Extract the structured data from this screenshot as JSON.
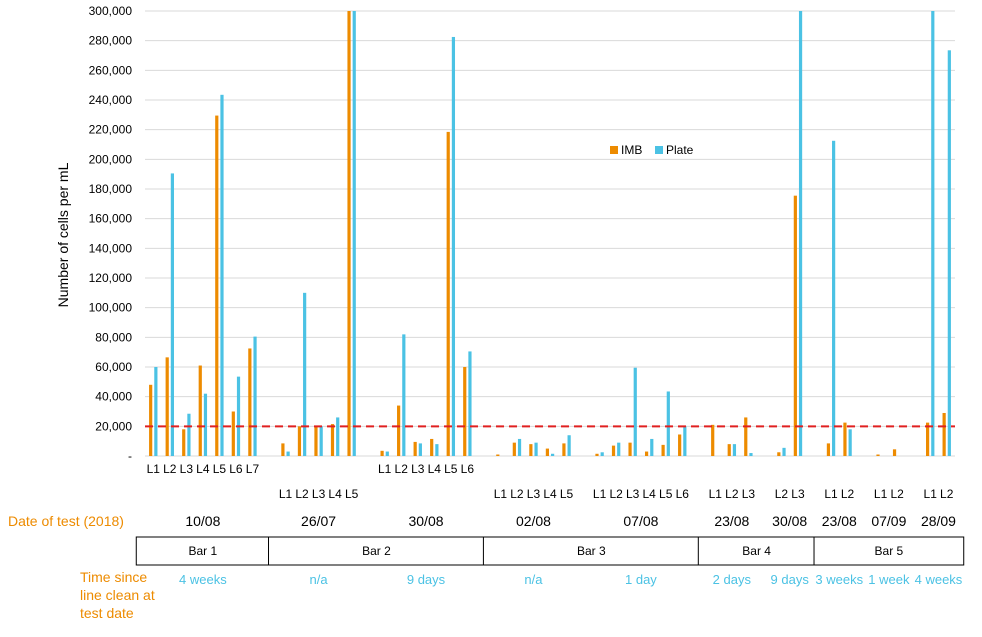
{
  "chart_data": {
    "type": "bar",
    "title": "",
    "ylabel": "Number of cells per mL",
    "ylim": [
      0,
      300000
    ],
    "y_ticks": [
      0,
      20000,
      40000,
      60000,
      80000,
      100000,
      120000,
      140000,
      160000,
      180000,
      200000,
      220000,
      240000,
      260000,
      280000,
      300000
    ],
    "y_tick_labels": [
      "-",
      "20,000",
      "40,000",
      "60,000",
      "80,000",
      "100,000",
      "120,000",
      "140,000",
      "160,000",
      "180,000",
      "200,000",
      "220,000",
      "240,000",
      "260,000",
      "280,000",
      "300,000"
    ],
    "grid": true,
    "legend_placement": "inside-top-right",
    "reference_line": {
      "value": 20000,
      "style": "dashed",
      "color": "#E02020"
    },
    "colors": {
      "IMB": "#ED8B00",
      "Plate": "#4BC2E4",
      "gridline": "#D9D9D9"
    },
    "series_names": [
      "IMB",
      "Plate"
    ],
    "groups": [
      {
        "date": "10/08",
        "bar": "Bar 1",
        "time_since_clean": "4 weeks",
        "lines": [
          {
            "label": "L1",
            "IMB": 48000,
            "Plate": 60000
          },
          {
            "label": "L2",
            "IMB": 66500,
            "Plate": 190500
          },
          {
            "label": "L3",
            "IMB": 18000,
            "Plate": 28500
          },
          {
            "label": "L4",
            "IMB": 61000,
            "Plate": 42000
          },
          {
            "label": "L5",
            "IMB": 229500,
            "Plate": 243500
          },
          {
            "label": "L6",
            "IMB": 30000,
            "Plate": 53500
          },
          {
            "label": "L7",
            "IMB": 72500,
            "Plate": 80500
          }
        ]
      },
      {
        "date": "26/07",
        "bar": "Bar 2",
        "time_since_clean": "n/a",
        "lines": [
          {
            "label": "L1",
            "IMB": 8500,
            "Plate": 3000
          },
          {
            "label": "L2",
            "IMB": 20000,
            "Plate": 110000
          },
          {
            "label": "L3",
            "IMB": 20000,
            "Plate": 20000
          },
          {
            "label": "L4",
            "IMB": 21500,
            "Plate": 26000
          },
          {
            "label": "L5",
            "IMB": 300000,
            "Plate": 300000
          }
        ]
      },
      {
        "date": "30/08",
        "bar": "Bar 2",
        "time_since_clean": "9 days",
        "lines": [
          {
            "label": "L1",
            "IMB": 3500,
            "Plate": 3000
          },
          {
            "label": "L2",
            "IMB": 34000,
            "Plate": 82000
          },
          {
            "label": "L3",
            "IMB": 9500,
            "Plate": 8500
          },
          {
            "label": "L4",
            "IMB": 11500,
            "Plate": 8000
          },
          {
            "label": "L5",
            "IMB": 218500,
            "Plate": 282500
          },
          {
            "label": "L6",
            "IMB": 60000,
            "Plate": 70500
          }
        ]
      },
      {
        "date": "02/08",
        "bar": "Bar 3",
        "time_since_clean": "n/a",
        "lines": [
          {
            "label": "L1",
            "IMB": 1000,
            "Plate": 0
          },
          {
            "label": "L2",
            "IMB": 9000,
            "Plate": 11500
          },
          {
            "label": "L3",
            "IMB": 8000,
            "Plate": 9000
          },
          {
            "label": "L4",
            "IMB": 5000,
            "Plate": 1500
          },
          {
            "label": "L5",
            "IMB": 8500,
            "Plate": 14000
          }
        ]
      },
      {
        "date": "07/08",
        "bar": "Bar 3",
        "time_since_clean": "1 day",
        "lines": [
          {
            "label": "L1",
            "IMB": 1500,
            "Plate": 2500
          },
          {
            "label": "L2",
            "IMB": 7000,
            "Plate": 9000
          },
          {
            "label": "L3",
            "IMB": 9000,
            "Plate": 59500
          },
          {
            "label": "L4",
            "IMB": 3000,
            "Plate": 11500
          },
          {
            "label": "L5",
            "IMB": 7500,
            "Plate": 43500
          },
          {
            "label": "L6",
            "IMB": 14500,
            "Plate": 20000
          }
        ]
      },
      {
        "date": "23/08",
        "bar": "Bar 4",
        "time_since_clean": "2 days",
        "lines": [
          {
            "label": "L1",
            "IMB": 21000,
            "Plate": 0
          },
          {
            "label": "L2",
            "IMB": 8000,
            "Plate": 8000
          },
          {
            "label": "L3",
            "IMB": 26000,
            "Plate": 2000
          }
        ]
      },
      {
        "date": "30/08",
        "bar": "Bar 4",
        "time_since_clean": "9 days",
        "lines": [
          {
            "label": "L2",
            "IMB": 2500,
            "Plate": 5500
          },
          {
            "label": "L3",
            "IMB": 175500,
            "Plate": 300000
          }
        ]
      },
      {
        "date": "23/08",
        "bar": "Bar 5",
        "time_since_clean": "3 weeks",
        "lines": [
          {
            "label": "L1",
            "IMB": 8500,
            "Plate": 212500
          },
          {
            "label": "L2",
            "IMB": 22500,
            "Plate": 18000
          }
        ]
      },
      {
        "date": "07/09",
        "bar": "Bar 5",
        "time_since_clean": "1 week",
        "lines": [
          {
            "label": "L1",
            "IMB": 1000,
            "Plate": 0
          },
          {
            "label": "L2",
            "IMB": 4500,
            "Plate": 0
          }
        ]
      },
      {
        "date": "28/09",
        "bar": "Bar 5",
        "time_since_clean": "4 weeks",
        "lines": [
          {
            "label": "L1",
            "IMB": 22500,
            "Plate": 300000
          },
          {
            "label": "L2",
            "IMB": 29000,
            "Plate": 273500
          }
        ]
      }
    ],
    "bars": [
      "Bar 1",
      "Bar 2",
      "Bar 3",
      "Bar 4",
      "Bar 5"
    ]
  },
  "labels": {
    "date_of_test": "Date of test (2018)",
    "time_since_clean_lines": [
      "Time since",
      "line clean at",
      "test date"
    ]
  }
}
